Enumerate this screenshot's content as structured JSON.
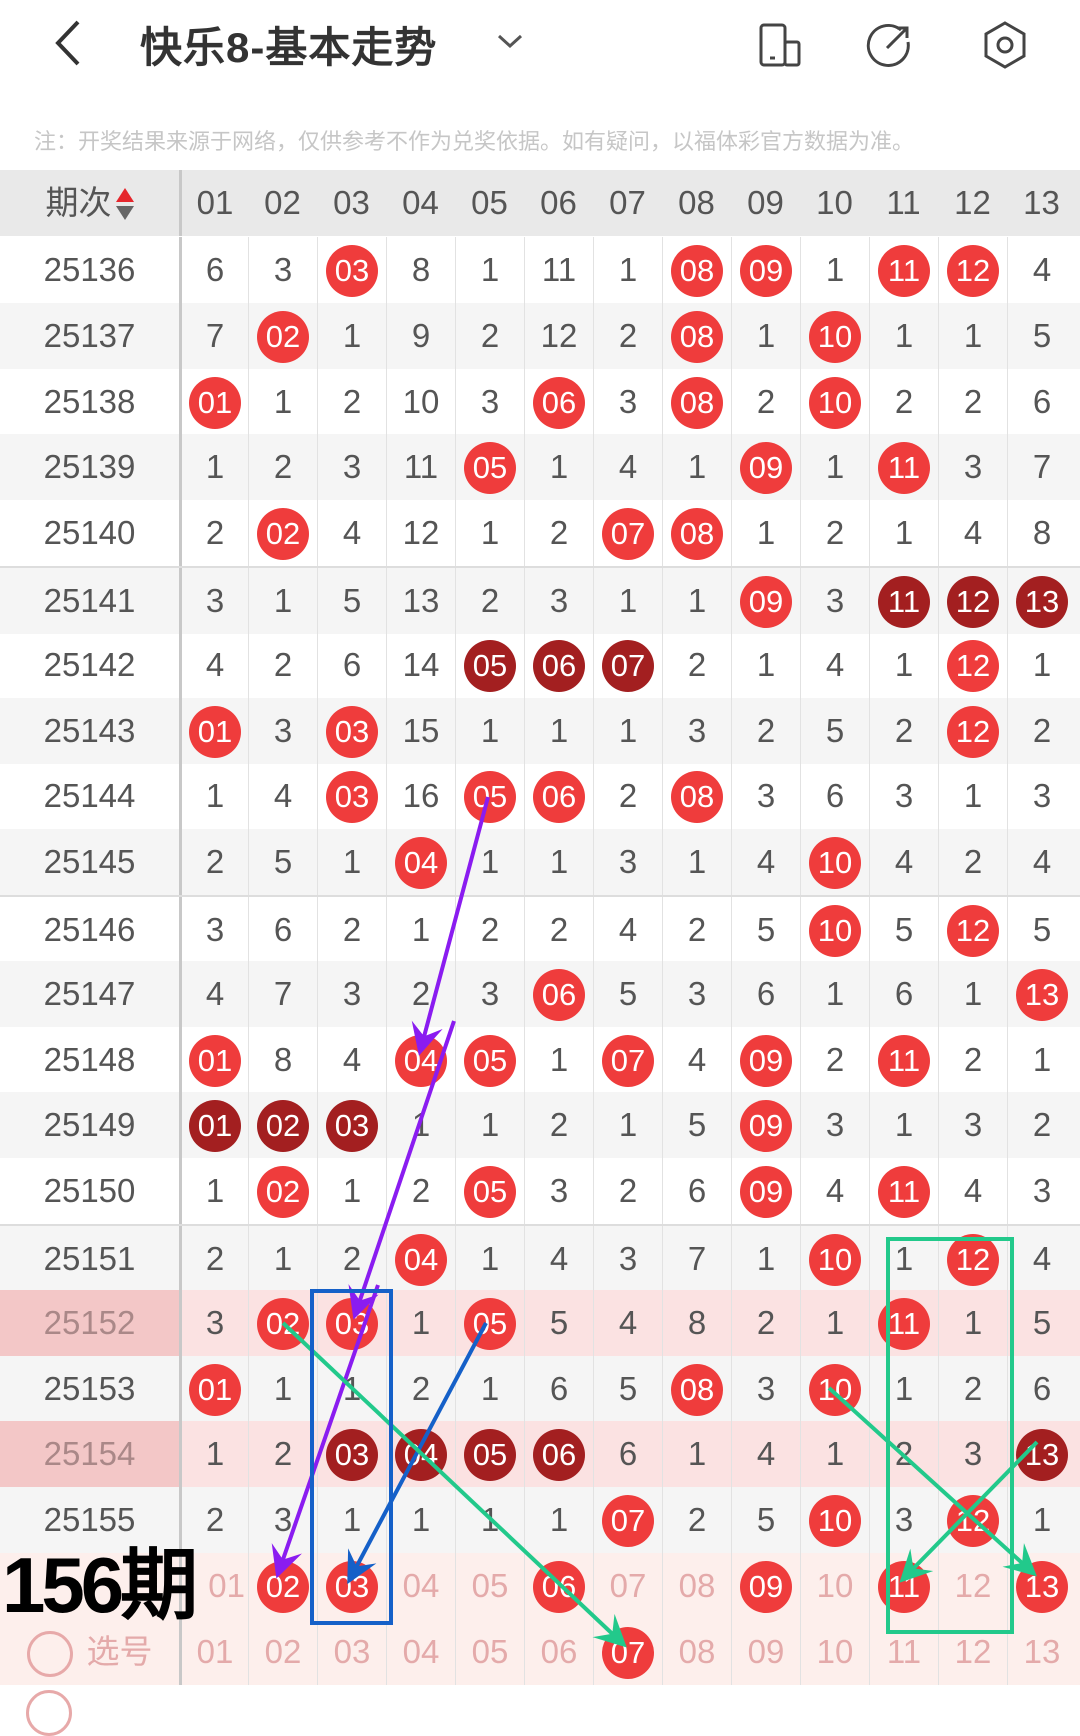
{
  "header": {
    "title": "快乐8-基本走势",
    "icons": [
      "back-icon",
      "chevron-down-icon",
      "phone-layout-icon",
      "share-icon",
      "settings-icon"
    ]
  },
  "note": "注：开奖结果来源于网络，仅供参考不作为兑奖依据。如有疑问，以福体彩官方数据为准。",
  "table": {
    "period_header": "期次",
    "columns": [
      "01",
      "02",
      "03",
      "04",
      "05",
      "06",
      "07",
      "08",
      "09",
      "10",
      "11",
      "12",
      "13"
    ],
    "rows": [
      {
        "period": "25136",
        "cells": [
          "6",
          "3",
          {
            "n": "03"
          },
          "8",
          "1",
          "11",
          "1",
          {
            "n": "08"
          },
          {
            "n": "09"
          },
          "1",
          {
            "n": "11"
          },
          {
            "n": "12"
          },
          "4"
        ]
      },
      {
        "period": "25137",
        "cells": [
          "7",
          {
            "n": "02"
          },
          "1",
          "9",
          "2",
          "12",
          "2",
          {
            "n": "08"
          },
          "1",
          {
            "n": "10"
          },
          "1",
          "1",
          "5"
        ]
      },
      {
        "period": "25138",
        "cells": [
          {
            "n": "01"
          },
          "1",
          "2",
          "10",
          "3",
          {
            "n": "06"
          },
          "3",
          {
            "n": "08"
          },
          "2",
          {
            "n": "10"
          },
          "2",
          "2",
          "6"
        ]
      },
      {
        "period": "25139",
        "cells": [
          "1",
          "2",
          "3",
          "11",
          {
            "n": "05"
          },
          "1",
          "4",
          "1",
          {
            "n": "09"
          },
          "1",
          {
            "n": "11"
          },
          "3",
          "7"
        ]
      },
      {
        "period": "25140",
        "cells": [
          "2",
          {
            "n": "02"
          },
          "4",
          "12",
          "1",
          "2",
          {
            "n": "07"
          },
          {
            "n": "08"
          },
          "1",
          "2",
          "1",
          "4",
          "8"
        ]
      },
      {
        "period": "25141",
        "cells": [
          "3",
          "1",
          "5",
          "13",
          "2",
          "3",
          "1",
          "1",
          {
            "n": "09"
          },
          "3",
          {
            "n": "11",
            "dark": true
          },
          {
            "n": "12",
            "dark": true
          },
          {
            "n": "13",
            "dark": true
          }
        ]
      },
      {
        "period": "25142",
        "cells": [
          "4",
          "2",
          "6",
          "14",
          {
            "n": "05",
            "dark": true
          },
          {
            "n": "06",
            "dark": true
          },
          {
            "n": "07",
            "dark": true
          },
          "2",
          "1",
          "4",
          "1",
          {
            "n": "12"
          },
          "1"
        ]
      },
      {
        "period": "25143",
        "cells": [
          {
            "n": "01"
          },
          "3",
          {
            "n": "03"
          },
          "15",
          "1",
          "1",
          "1",
          "3",
          "2",
          "5",
          "2",
          {
            "n": "12"
          },
          "2"
        ]
      },
      {
        "period": "25144",
        "cells": [
          "1",
          "4",
          {
            "n": "03"
          },
          "16",
          {
            "n": "05"
          },
          {
            "n": "06"
          },
          "2",
          {
            "n": "08"
          },
          "3",
          "6",
          "3",
          "1",
          "3"
        ]
      },
      {
        "period": "25145",
        "cells": [
          "2",
          "5",
          "1",
          {
            "n": "04"
          },
          "1",
          "1",
          "3",
          "1",
          "4",
          {
            "n": "10"
          },
          "4",
          "2",
          "4"
        ]
      },
      {
        "period": "25146",
        "cells": [
          "3",
          "6",
          "2",
          "1",
          "2",
          "2",
          "4",
          "2",
          "5",
          {
            "n": "10"
          },
          "5",
          {
            "n": "12"
          },
          "5"
        ]
      },
      {
        "period": "25147",
        "cells": [
          "4",
          "7",
          "3",
          "2",
          "3",
          {
            "n": "06"
          },
          "5",
          "3",
          "6",
          "1",
          "6",
          "1",
          {
            "n": "13"
          }
        ]
      },
      {
        "period": "25148",
        "cells": [
          {
            "n": "01"
          },
          "8",
          "4",
          {
            "n": "04"
          },
          {
            "n": "05"
          },
          "1",
          {
            "n": "07"
          },
          "4",
          {
            "n": "09"
          },
          "2",
          {
            "n": "11"
          },
          "2",
          "1"
        ]
      },
      {
        "period": "25149",
        "cells": [
          {
            "n": "01",
            "dark": true
          },
          {
            "n": "02",
            "dark": true
          },
          {
            "n": "03",
            "dark": true
          },
          "1",
          "1",
          "2",
          "1",
          "5",
          {
            "n": "09"
          },
          "3",
          "1",
          "3",
          "2"
        ]
      },
      {
        "period": "25150",
        "cells": [
          "1",
          {
            "n": "02"
          },
          "1",
          "2",
          {
            "n": "05"
          },
          "3",
          "2",
          "6",
          {
            "n": "09"
          },
          "4",
          {
            "n": "11"
          },
          "4",
          "3"
        ]
      },
      {
        "period": "25151",
        "cells": [
          "2",
          "1",
          "2",
          {
            "n": "04"
          },
          "1",
          "4",
          "3",
          "7",
          "1",
          {
            "n": "10"
          },
          "1",
          {
            "n": "12"
          },
          "4"
        ]
      },
      {
        "period": "25152",
        "highlight": true,
        "cells": [
          "3",
          {
            "n": "02"
          },
          {
            "n": "03"
          },
          "1",
          {
            "n": "05"
          },
          "5",
          "4",
          "8",
          "2",
          "1",
          {
            "n": "11"
          },
          "1",
          "5"
        ]
      },
      {
        "period": "25153",
        "cells": [
          {
            "n": "01"
          },
          "1",
          "1",
          "2",
          "1",
          "6",
          "5",
          {
            "n": "08"
          },
          "3",
          {
            "n": "10"
          },
          "1",
          "2",
          "6"
        ]
      },
      {
        "period": "25154",
        "highlight": true,
        "cells": [
          "1",
          "2",
          {
            "n": "03",
            "dark": true
          },
          {
            "n": "04",
            "dark": true
          },
          {
            "n": "05",
            "dark": true
          },
          {
            "n": "06",
            "dark": true
          },
          "6",
          "1",
          "4",
          "1",
          "2",
          "3",
          {
            "n": "13",
            "dark": true
          }
        ]
      },
      {
        "period": "25155",
        "cells": [
          "2",
          "3",
          "1",
          "1",
          "1",
          "1",
          {
            "n": "07"
          },
          "2",
          "5",
          {
            "n": "10"
          },
          "3",
          {
            "n": "12"
          },
          "1"
        ]
      }
    ],
    "prediction_row": {
      "label": "156期",
      "cells": [
        {
          "t": "01"
        },
        {
          "n": "02"
        },
        {
          "n": "03"
        },
        {
          "t": "04"
        },
        {
          "t": "05"
        },
        {
          "n": "06"
        },
        {
          "t": "07"
        },
        {
          "t": "08"
        },
        {
          "n": "09"
        },
        {
          "t": "10"
        },
        {
          "n": "11"
        },
        {
          "t": "12"
        },
        {
          "n": "13"
        }
      ]
    },
    "select_row": {
      "label": "选号",
      "cells": [
        {
          "t": "01"
        },
        {
          "t": "02"
        },
        {
          "t": "03"
        },
        {
          "t": "04"
        },
        {
          "t": "05"
        },
        {
          "t": "06"
        },
        {
          "n": "07"
        },
        {
          "t": "08"
        },
        {
          "t": "09"
        },
        {
          "t": "10"
        },
        {
          "t": "11"
        },
        {
          "t": "12"
        },
        {
          "t": "13"
        }
      ]
    }
  },
  "colors": {
    "ball": "#ef3c3c",
    "ball_dark": "#a31f20",
    "arrow_purple": "#8a1cf0",
    "arrow_blue": "#1560c8",
    "arrow_green": "#22c98b"
  }
}
